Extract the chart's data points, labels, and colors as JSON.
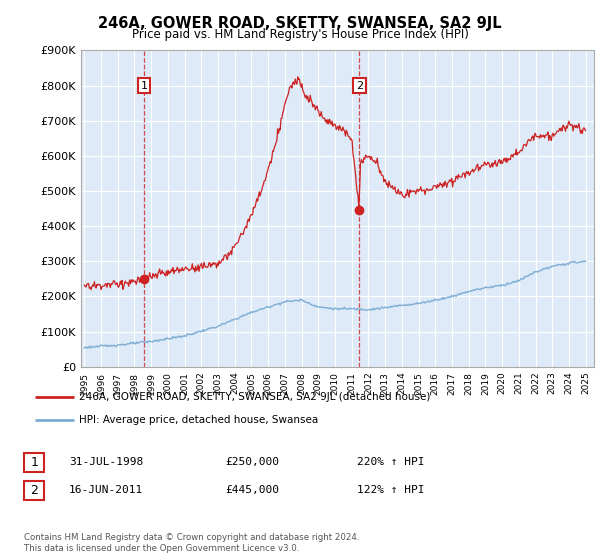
{
  "title": "246A, GOWER ROAD, SKETTY, SWANSEA, SA2 9JL",
  "subtitle": "Price paid vs. HM Land Registry's House Price Index (HPI)",
  "ylim": [
    0,
    900000
  ],
  "yticks": [
    0,
    100000,
    200000,
    300000,
    400000,
    500000,
    600000,
    700000,
    800000,
    900000
  ],
  "ytick_labels": [
    "£0",
    "£100K",
    "£200K",
    "£300K",
    "£400K",
    "£500K",
    "£600K",
    "£700K",
    "£800K",
    "£900K"
  ],
  "hpi_color": "#7dadd4",
  "price_color": "#cc2222",
  "grid_color": "#cccccc",
  "plot_bg_color": "#deeaf7",
  "purchases": [
    {
      "date": 1998.58,
      "price": 250000,
      "label": "1"
    },
    {
      "date": 2011.46,
      "price": 445000,
      "label": "2"
    }
  ],
  "legend_entry1": "246A, GOWER ROAD, SKETTY, SWANSEA, SA2 9JL (detached house)",
  "legend_entry2": "HPI: Average price, detached house, Swansea",
  "table_rows": [
    {
      "num": "1",
      "date": "31-JUL-1998",
      "price": "£250,000",
      "change": "220% ↑ HPI"
    },
    {
      "num": "2",
      "date": "16-JUN-2011",
      "price": "£445,000",
      "change": "122% ↑ HPI"
    }
  ],
  "footnote": "Contains HM Land Registry data © Crown copyright and database right 2024.\nThis data is licensed under the Open Government Licence v3.0.",
  "xlim": [
    1994.8,
    2025.5
  ],
  "xticks": [
    1995,
    1996,
    1997,
    1998,
    1999,
    2000,
    2001,
    2002,
    2003,
    2004,
    2005,
    2006,
    2007,
    2008,
    2009,
    2010,
    2011,
    2012,
    2013,
    2014,
    2015,
    2016,
    2017,
    2018,
    2019,
    2020,
    2021,
    2022,
    2023,
    2024,
    2025
  ]
}
